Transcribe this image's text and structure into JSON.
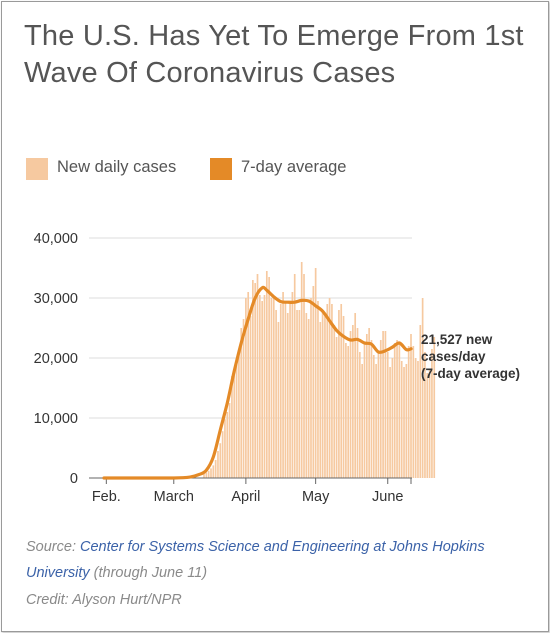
{
  "title": "The U.S. Has Yet To Emerge From 1st Wave Of Coronavirus Cases",
  "legend": [
    {
      "label": "New daily cases",
      "color": "#f6c9a0"
    },
    {
      "label": "7-day average",
      "color": "#e48a27"
    }
  ],
  "source": {
    "prefix": "Source: ",
    "link_text": "Center for Systems Science and Engineering at Johns Hopkins University",
    "suffix": " (through June 11)"
  },
  "credit": "Credit: Alyson Hurt/NPR",
  "chart_data": {
    "type": "bar",
    "title": "The U.S. Has Yet To Emerge From 1st Wave Of Coronavirus Cases",
    "xlabel": "",
    "ylabel": "",
    "ylim": [
      0,
      40000
    ],
    "y_ticks": [
      {
        "value": 0,
        "label": "0"
      },
      {
        "value": 10000,
        "label": "10,000"
      },
      {
        "value": 20000,
        "label": "20,000"
      },
      {
        "value": 30000,
        "label": "30,000"
      },
      {
        "value": 40000,
        "label": "40,000"
      }
    ],
    "x_ticks": [
      {
        "date": "2020-02-01",
        "label": "Feb."
      },
      {
        "date": "2020-03-01",
        "label": "March"
      },
      {
        "date": "2020-04-01",
        "label": "April"
      },
      {
        "date": "2020-05-01",
        "label": "May"
      },
      {
        "date": "2020-06-01",
        "label": "June"
      }
    ],
    "xlim": [
      "2020-01-31",
      "2020-06-11"
    ],
    "grid": "horizontal",
    "legend_position": "top",
    "bar_series": {
      "name": "New daily cases",
      "color": "#f6c9a0",
      "start_date": "2020-03-14",
      "values": [
        700,
        900,
        1200,
        1600,
        2100,
        3000,
        4500,
        5800,
        7800,
        9800,
        11000,
        12500,
        17000,
        18000,
        19500,
        21000,
        25000,
        26500,
        30000,
        31000,
        27000,
        33000,
        32500,
        34000,
        30500,
        29500,
        30500,
        34500,
        33500,
        30000,
        30000,
        28000,
        26000,
        29000,
        31000,
        29500,
        27500,
        29000,
        31000,
        34000,
        28000,
        28000,
        36000,
        34000,
        27500,
        26500,
        30000,
        32000,
        35000,
        29500,
        26000,
        28000,
        27500,
        29000,
        30000,
        29000,
        25500,
        23500,
        28000,
        29000,
        27000,
        22500,
        22000,
        24500,
        25500,
        27500,
        25000,
        21000,
        19000,
        22500,
        24000,
        25000,
        23000,
        20500,
        19000,
        21000,
        23000,
        24500,
        24500,
        21000,
        18500,
        20000,
        22500,
        23000,
        22500,
        19500,
        18500,
        19000,
        22000,
        24000,
        22000,
        20000,
        19500,
        25500,
        30000,
        21000,
        17500,
        18000,
        21500,
        23500
      ]
    },
    "average_series": {
      "name": "7-day average",
      "color": "#e48a27",
      "points": [
        [
          "2020-01-31",
          0
        ],
        [
          "2020-02-15",
          0
        ],
        [
          "2020-03-01",
          0
        ],
        [
          "2020-03-08",
          150
        ],
        [
          "2020-03-12",
          600
        ],
        [
          "2020-03-15",
          1300
        ],
        [
          "2020-03-18",
          3500
        ],
        [
          "2020-03-21",
          8000
        ],
        [
          "2020-03-24",
          12500
        ],
        [
          "2020-03-27",
          17800
        ],
        [
          "2020-03-30",
          22500
        ],
        [
          "2020-04-02",
          26500
        ],
        [
          "2020-04-05",
          30000
        ],
        [
          "2020-04-08",
          31700
        ],
        [
          "2020-04-10",
          31300
        ],
        [
          "2020-04-13",
          30200
        ],
        [
          "2020-04-16",
          29400
        ],
        [
          "2020-04-19",
          29300
        ],
        [
          "2020-04-22",
          29300
        ],
        [
          "2020-04-25",
          29600
        ],
        [
          "2020-04-28",
          29500
        ],
        [
          "2020-05-01",
          28700
        ],
        [
          "2020-05-04",
          27800
        ],
        [
          "2020-05-07",
          26200
        ],
        [
          "2020-05-10",
          24600
        ],
        [
          "2020-05-13",
          23600
        ],
        [
          "2020-05-16",
          23000
        ],
        [
          "2020-05-19",
          23100
        ],
        [
          "2020-05-22",
          22500
        ],
        [
          "2020-05-25",
          22300
        ],
        [
          "2020-05-28",
          21000
        ],
        [
          "2020-05-31",
          21200
        ],
        [
          "2020-06-03",
          21800
        ],
        [
          "2020-06-06",
          22500
        ],
        [
          "2020-06-09",
          21400
        ],
        [
          "2020-06-11",
          21527
        ]
      ]
    },
    "annotation": {
      "lines": [
        "21,527 new",
        "cases/day",
        "(7-day average)"
      ],
      "value": 21527
    }
  }
}
